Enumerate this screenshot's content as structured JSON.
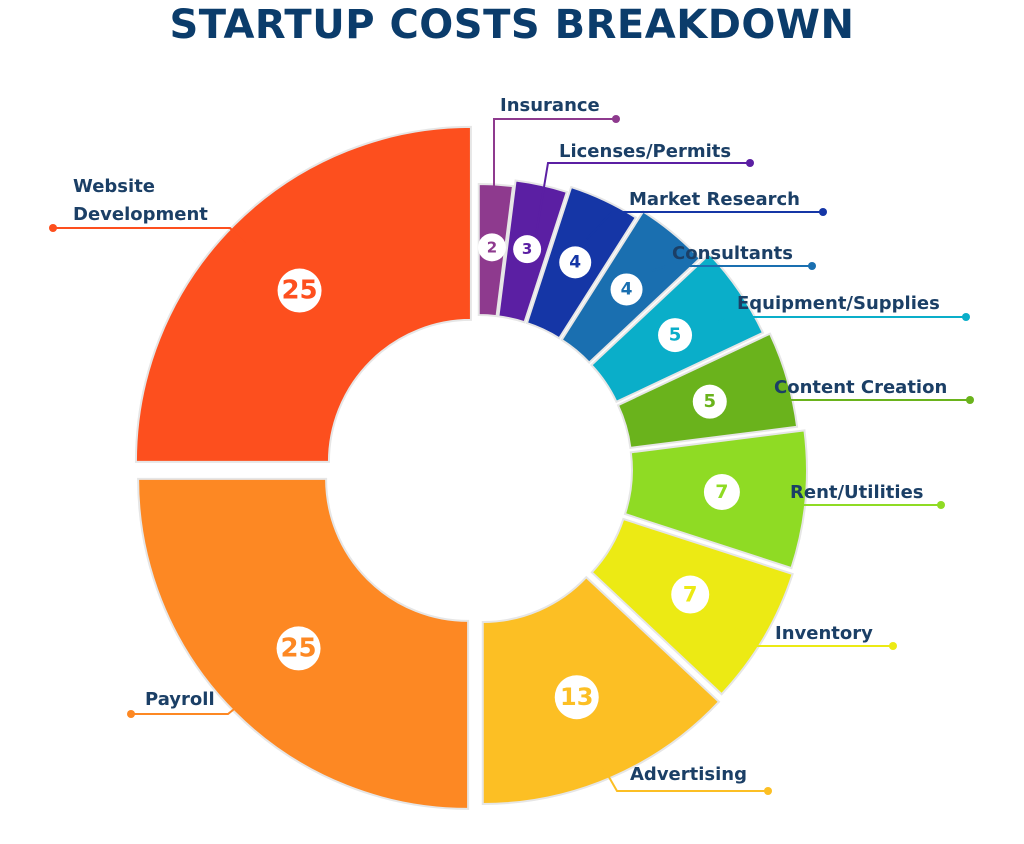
{
  "chart_data": {
    "type": "pie",
    "title": "STARTUP COSTS BREAKDOWN",
    "slices": [
      {
        "label": "Insurance",
        "value": 2,
        "color": "#8e3a8e"
      },
      {
        "label": "Licenses/Permits",
        "value": 3,
        "color": "#5b1fa3"
      },
      {
        "label": "Market Research",
        "value": 4,
        "color": "#1536a6"
      },
      {
        "label": "Consultants",
        "value": 4,
        "color": "#1a6fb0"
      },
      {
        "label": "Equipment/Supplies",
        "value": 5,
        "color": "#0aaec9"
      },
      {
        "label": "Content Creation",
        "value": 5,
        "color": "#6ab31c"
      },
      {
        "label": "Rent/Utilities",
        "value": 7,
        "color": "#8fdb24"
      },
      {
        "label": "Inventory",
        "value": 7,
        "color": "#ecea14"
      },
      {
        "label": "Advertising",
        "value": 13,
        "color": "#fcbf24"
      },
      {
        "label": "Payroll",
        "value": 25,
        "color": "#fd8823"
      },
      {
        "label": "Website Development",
        "value": 25,
        "color": "#fd4f1e"
      }
    ]
  }
}
